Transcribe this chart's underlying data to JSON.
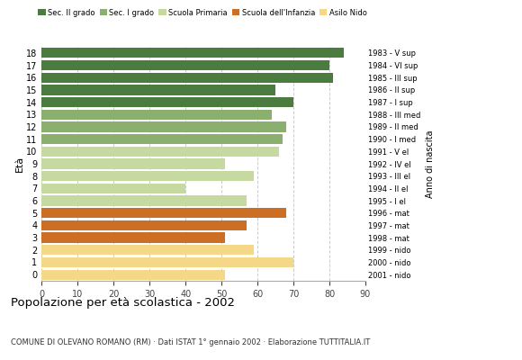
{
  "ages": [
    18,
    17,
    16,
    15,
    14,
    13,
    12,
    11,
    10,
    9,
    8,
    7,
    6,
    5,
    4,
    3,
    2,
    1,
    0
  ],
  "values": [
    84,
    80,
    81,
    65,
    70,
    64,
    68,
    67,
    66,
    51,
    59,
    40,
    57,
    68,
    57,
    51,
    59,
    70,
    51
  ],
  "colors": [
    "#4a7c3f",
    "#4a7c3f",
    "#4a7c3f",
    "#4a7c3f",
    "#4a7c3f",
    "#8aaf6e",
    "#8aaf6e",
    "#8aaf6e",
    "#c5d9a0",
    "#c5d9a0",
    "#c5d9a0",
    "#c5d9a0",
    "#c5d9a0",
    "#cc6f24",
    "#cc6f24",
    "#cc6f24",
    "#f5d788",
    "#f5d788",
    "#f5d788"
  ],
  "right_labels": [
    "1983 - V sup",
    "1984 - VI sup",
    "1985 - III sup",
    "1986 - II sup",
    "1987 - I sup",
    "1988 - III med",
    "1989 - II med",
    "1990 - I med",
    "1991 - V el",
    "1992 - IV el",
    "1993 - III el",
    "1994 - II el",
    "1995 - I el",
    "1996 - mat",
    "1997 - mat",
    "1998 - mat",
    "1999 - nido",
    "2000 - nido",
    "2001 - nido"
  ],
  "legend_labels": [
    "Sec. II grado",
    "Sec. I grado",
    "Scuola Primaria",
    "Scuola dell'Infanzia",
    "Asilo Nido"
  ],
  "legend_colors": [
    "#4a7c3f",
    "#8aaf6e",
    "#c5d9a0",
    "#cc6f24",
    "#f5d788"
  ],
  "title": "Popolazione per età scolastica - 2002",
  "subtitle": "COMUNE DI OLEVANO ROMANO (RM) · Dati ISTAT 1° gennaio 2002 · Elaborazione TUTTITALIA.IT",
  "ylabel": "Età",
  "right_ylabel": "Anno di nascita",
  "xlim": [
    0,
    90
  ],
  "xticks": [
    0,
    10,
    20,
    30,
    40,
    50,
    60,
    70,
    80,
    90
  ],
  "grid_color": "#cccccc",
  "bar_height": 0.82,
  "background_color": "#ffffff"
}
